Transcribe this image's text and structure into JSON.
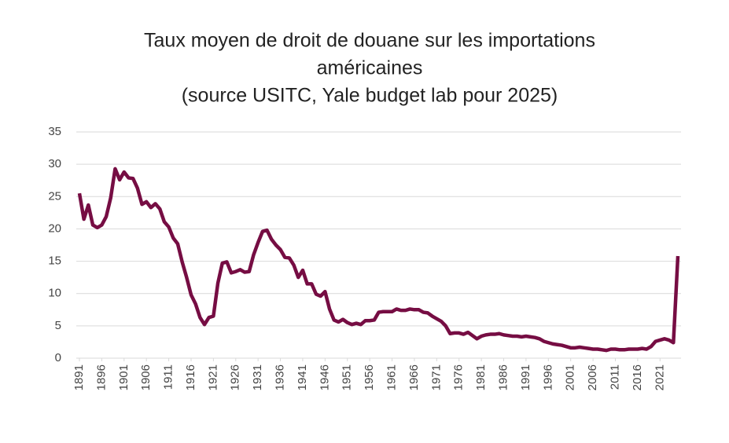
{
  "chart_data": {
    "type": "line",
    "title": [
      "Taux moyen de droit de douane sur les importations",
      "américaines",
      "(source USITC, Yale budget lab pour 2025)"
    ],
    "x": [
      1891,
      1892,
      1893,
      1894,
      1895,
      1896,
      1897,
      1898,
      1899,
      1900,
      1901,
      1902,
      1903,
      1904,
      1905,
      1906,
      1907,
      1908,
      1909,
      1910,
      1911,
      1912,
      1913,
      1914,
      1915,
      1916,
      1917,
      1918,
      1919,
      1920,
      1921,
      1922,
      1923,
      1924,
      1925,
      1926,
      1927,
      1928,
      1929,
      1930,
      1931,
      1932,
      1933,
      1934,
      1935,
      1936,
      1937,
      1938,
      1939,
      1940,
      1941,
      1942,
      1943,
      1944,
      1945,
      1946,
      1947,
      1948,
      1949,
      1950,
      1951,
      1952,
      1953,
      1954,
      1955,
      1956,
      1957,
      1958,
      1959,
      1960,
      1961,
      1962,
      1963,
      1964,
      1965,
      1966,
      1967,
      1968,
      1969,
      1970,
      1971,
      1972,
      1973,
      1974,
      1975,
      1976,
      1977,
      1978,
      1979,
      1980,
      1981,
      1982,
      1983,
      1984,
      1985,
      1986,
      1987,
      1988,
      1989,
      1990,
      1991,
      1992,
      1993,
      1994,
      1995,
      1996,
      1997,
      1998,
      1999,
      2000,
      2001,
      2002,
      2003,
      2004,
      2005,
      2006,
      2007,
      2008,
      2009,
      2010,
      2011,
      2012,
      2013,
      2014,
      2015,
      2016,
      2017,
      2018,
      2019,
      2020,
      2021,
      2022,
      2023,
      2024,
      2025
    ],
    "series": [
      {
        "color": "#760d43",
        "values": [
          25.5,
          21.5,
          23.7,
          20.6,
          20.2,
          20.6,
          21.9,
          24.8,
          29.3,
          27.6,
          28.8,
          27.9,
          27.8,
          26.3,
          23.8,
          24.2,
          23.3,
          23.9,
          23.1,
          21.1,
          20.3,
          18.6,
          17.7,
          14.9,
          12.5,
          9.8,
          8.4,
          6.3,
          5.2,
          6.3,
          6.5,
          11.6,
          14.7,
          14.9,
          13.2,
          13.4,
          13.7,
          13.3,
          13.4,
          16.0,
          17.9,
          19.6,
          19.8,
          18.4,
          17.5,
          16.8,
          15.6,
          15.5,
          14.4,
          12.5,
          13.6,
          11.5,
          11.5,
          9.9,
          9.6,
          10.3,
          7.6,
          5.9,
          5.6,
          6.0,
          5.5,
          5.2,
          5.4,
          5.2,
          5.8,
          5.8,
          5.9,
          7.1,
          7.2,
          7.2,
          7.2,
          7.6,
          7.4,
          7.4,
          7.6,
          7.5,
          7.5,
          7.1,
          7.0,
          6.5,
          6.1,
          5.7,
          5.0,
          3.8,
          3.9,
          3.9,
          3.7,
          4.0,
          3.5,
          3.0,
          3.4,
          3.6,
          3.7,
          3.7,
          3.8,
          3.6,
          3.5,
          3.4,
          3.4,
          3.3,
          3.4,
          3.3,
          3.2,
          3.0,
          2.6,
          2.4,
          2.2,
          2.1,
          2.0,
          1.8,
          1.6,
          1.6,
          1.7,
          1.6,
          1.5,
          1.4,
          1.4,
          1.3,
          1.2,
          1.4,
          1.4,
          1.3,
          1.3,
          1.4,
          1.4,
          1.4,
          1.5,
          1.4,
          1.8,
          2.6,
          2.8,
          3.0,
          2.8,
          2.4,
          15.8
        ]
      }
    ],
    "xlim": [
      1891,
      2025
    ],
    "xticks": [
      1891,
      1896,
      1901,
      1906,
      1911,
      1916,
      1921,
      1926,
      1931,
      1936,
      1941,
      1946,
      1951,
      1956,
      1961,
      1966,
      1971,
      1976,
      1981,
      1986,
      1991,
      1996,
      2001,
      2006,
      2011,
      2016,
      2021
    ],
    "ylim": [
      0,
      35
    ],
    "yticks": [
      0,
      5,
      10,
      15,
      20,
      25,
      30,
      35
    ],
    "grid": true
  }
}
